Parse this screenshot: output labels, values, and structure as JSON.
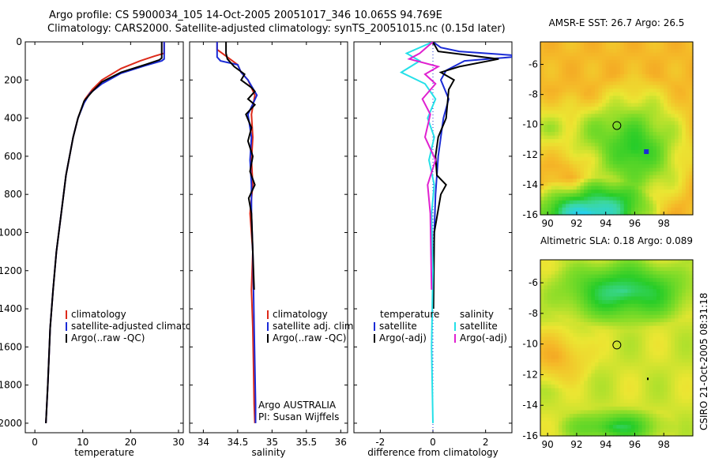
{
  "header": {
    "line1": "Argo profile: CS 5900034_105 14-Oct-2005 20051017_346 10.065S 94.769E",
    "line2": "Climatology: CARS2000. Satellite-adjusted climatology: synTS_20051015.nc (0.15d later)"
  },
  "credit": "CSIRO 21-Oct-2005 08:31:18",
  "colors": {
    "climatology": "#dd2a1a",
    "satellite": "#1a2bd6",
    "argo": "#000000",
    "salinity_sat": "#25e0e8",
    "salinity_argo": "#e020d0"
  },
  "chart_data": [
    {
      "type": "line",
      "id": "temperature",
      "title": "",
      "xlabel": "temperature",
      "ylabel": "",
      "xlim": [
        -2,
        31
      ],
      "ylim": [
        2050,
        0
      ],
      "xticks": [
        0,
        10,
        20,
        30
      ],
      "yticks": [
        0,
        200,
        400,
        600,
        800,
        1000,
        1200,
        1400,
        1600,
        1800,
        2000
      ],
      "series": [
        {
          "name": "climatology",
          "color": "#dd2a1a",
          "x": [
            27,
            27,
            25,
            22,
            18,
            14,
            12,
            10.5,
            9,
            8,
            6.5,
            5.5,
            4.5,
            3.8,
            3.2,
            2.7,
            2.3
          ],
          "y": [
            0,
            60,
            75,
            100,
            140,
            200,
            250,
            300,
            400,
            500,
            700,
            900,
            1100,
            1300,
            1500,
            1800,
            2000
          ]
        },
        {
          "name": "satellite-adjusted climatology",
          "color": "#1a2bd6",
          "x": [
            27,
            27,
            26.5,
            23,
            18,
            14,
            11.5,
            10.3,
            9,
            8,
            6.5,
            5.5,
            4.5,
            3.8,
            3.2,
            2.7,
            2.3
          ],
          "y": [
            0,
            90,
            100,
            125,
            165,
            220,
            270,
            320,
            400,
            500,
            700,
            900,
            1100,
            1300,
            1500,
            1800,
            2000
          ]
        },
        {
          "name": "Argo(..raw -QC)",
          "color": "#000000",
          "x": [
            26.5,
            26.5,
            26,
            23,
            18,
            14,
            12,
            10.3,
            9,
            8,
            6.5,
            5.5,
            4.5,
            3.8,
            3.2,
            2.7,
            2.3
          ],
          "y": [
            0,
            85,
            95,
            120,
            160,
            210,
            260,
            310,
            400,
            500,
            700,
            900,
            1100,
            1300,
            1500,
            1800,
            2000
          ]
        }
      ],
      "legend": [
        "climatology",
        "satellite-adjusted climatology",
        "Argo(..raw -QC)"
      ],
      "legend_location": "lower-right"
    },
    {
      "type": "line",
      "id": "salinity",
      "title": "",
      "xlabel": "salinity",
      "ylabel": "",
      "xlim": [
        33.8,
        36.1
      ],
      "ylim": [
        2050,
        0
      ],
      "xticks": [
        34,
        34.5,
        35,
        35.5,
        36
      ],
      "annotation": [
        "Argo AUSTRALIA",
        "PI: Susan Wijffels"
      ],
      "series": [
        {
          "name": "climatology",
          "color": "#dd2a1a",
          "x": [
            34.2,
            34.2,
            34.35,
            34.5,
            34.55,
            34.65,
            34.75,
            34.7,
            34.72,
            34.7,
            34.72,
            34.68,
            34.72,
            34.7,
            34.72,
            34.73,
            34.74,
            34.75
          ],
          "y": [
            0,
            40,
            80,
            120,
            160,
            200,
            280,
            380,
            500,
            620,
            750,
            900,
            1100,
            1300,
            1500,
            1700,
            1900,
            2000
          ]
        },
        {
          "name": "satellite adj. clim.",
          "color": "#1a2bd6",
          "x": [
            34.2,
            34.2,
            34.25,
            34.5,
            34.55,
            34.65,
            34.78,
            34.65,
            34.7,
            34.68,
            34.7,
            34.7,
            34.72,
            34.73,
            34.74,
            34.75,
            34.76,
            34.76
          ],
          "y": [
            0,
            80,
            100,
            120,
            160,
            200,
            280,
            380,
            500,
            620,
            750,
            900,
            1100,
            1300,
            1500,
            1700,
            1900,
            2000
          ]
        },
        {
          "name": "Argo(..raw -QC)",
          "color": "#000000",
          "x": [
            34.33,
            34.33,
            34.35,
            34.45,
            34.6,
            34.55,
            34.7,
            34.75,
            34.65,
            34.75,
            34.62,
            34.7,
            34.65,
            34.72,
            34.68,
            34.75,
            34.66,
            34.7,
            34.72,
            34.74
          ],
          "y": [
            0,
            60,
            90,
            130,
            170,
            200,
            240,
            260,
            300,
            330,
            380,
            450,
            520,
            600,
            680,
            750,
            820,
            900,
            1100,
            1300
          ]
        }
      ],
      "legend": [
        "climatology",
        "satellite adj. clim.",
        "Argo(..raw -QC)"
      ],
      "legend_location": "lower-right"
    },
    {
      "type": "line",
      "id": "difference",
      "title": "",
      "xlabel": "difference from climatology",
      "ylabel": "",
      "xlim": [
        -3,
        3
      ],
      "ylim": [
        2050,
        0
      ],
      "xticks": [
        -2,
        0,
        2
      ],
      "legend_headers": [
        "temperature",
        "salinity"
      ],
      "series": [
        {
          "name": "satellite",
          "group": "temperature",
          "color": "#1a2bd6",
          "x": [
            0,
            0.3,
            1.0,
            3.0,
            3.0,
            1.2,
            0.5,
            0.3,
            0.6,
            0.4,
            0.2,
            0.1,
            0.05,
            0.02
          ],
          "y": [
            0,
            30,
            50,
            70,
            80,
            100,
            150,
            200,
            300,
            400,
            600,
            800,
            1000,
            1200
          ]
        },
        {
          "name": "Argo(-adj)",
          "group": "temperature",
          "color": "#000000",
          "x": [
            0,
            0.2,
            2.5,
            1.0,
            0.3,
            0.8,
            0.6,
            0.5,
            0.2,
            0.1,
            0.15,
            0.5,
            0.3,
            0.05,
            0.02
          ],
          "y": [
            0,
            50,
            90,
            130,
            160,
            200,
            250,
            400,
            500,
            600,
            700,
            750,
            800,
            1000,
            1400
          ]
        },
        {
          "name": "satellite",
          "group": "salinity",
          "color": "#25e0e8",
          "x": [
            0,
            -1.0,
            -0.5,
            -1.2,
            -0.3,
            0.1,
            -0.2,
            0.05,
            -0.15,
            0.05,
            -0.05,
            0.0,
            -0.05,
            0.0
          ],
          "y": [
            0,
            60,
            100,
            160,
            220,
            300,
            400,
            500,
            620,
            750,
            900,
            1200,
            1600,
            2000
          ]
        },
        {
          "name": "Argo(-adj)",
          "group": "salinity",
          "color": "#e020d0",
          "x": [
            0,
            -0.5,
            -0.9,
            0.2,
            -0.3,
            0.1,
            -0.4,
            -0.1,
            -0.3,
            0.1,
            -0.2,
            -0.1,
            -0.05
          ],
          "y": [
            0,
            60,
            90,
            130,
            170,
            220,
            300,
            380,
            500,
            620,
            750,
            900,
            1300
          ]
        }
      ],
      "legend": [
        "satellite",
        "Argo(-adj)",
        "satellite",
        "Argo(-adj)"
      ],
      "legend_location": "lower-right"
    },
    {
      "type": "heatmap",
      "id": "sst-map",
      "title": "AMSR-E SST: 26.7 Argo: 26.5",
      "xlim": [
        89.5,
        100
      ],
      "ylim": [
        -16,
        -4.5
      ],
      "xticks": [
        90,
        92,
        94,
        96,
        98
      ],
      "yticks": [
        -6,
        -8,
        -10,
        -12,
        -14,
        -16
      ],
      "marker": {
        "lon": 94.769,
        "lat": -10.065
      }
    },
    {
      "type": "heatmap",
      "id": "sla-map",
      "title": "Altimetric SLA: 0.18 Argo: 0.089",
      "xlim": [
        89.5,
        100
      ],
      "ylim": [
        -16,
        -4.5
      ],
      "xticks": [
        90,
        92,
        94,
        96,
        98
      ],
      "yticks": [
        -6,
        -8,
        -10,
        -12,
        -14,
        -16
      ],
      "marker": {
        "lon": 94.769,
        "lat": -10.065
      }
    }
  ]
}
